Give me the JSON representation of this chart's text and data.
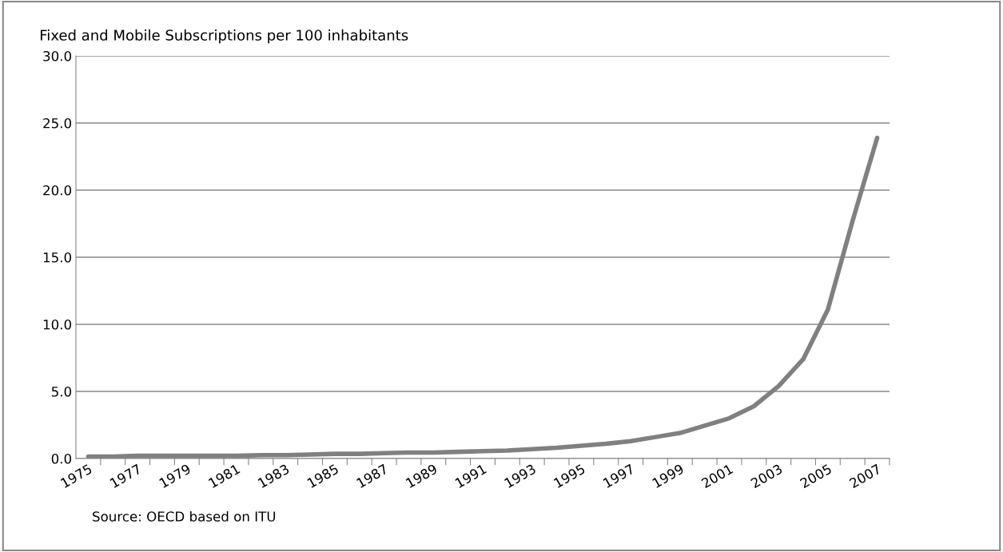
{
  "chart_data": {
    "type": "line",
    "title": "Fixed and Mobile Subscriptions per 100 inhabitants",
    "categories": [
      "1975",
      null,
      "1977",
      null,
      "1979",
      null,
      "1981",
      null,
      "1983",
      null,
      "1985",
      null,
      "1987",
      null,
      "1989",
      null,
      "1991",
      null,
      "1993",
      null,
      "1995",
      null,
      "1997",
      null,
      "1999",
      null,
      "2001",
      null,
      "2003",
      null,
      "2005",
      null,
      "2007"
    ],
    "series": [
      {
        "color": "#808080",
        "values": [
          0.15,
          0.15,
          0.2,
          0.2,
          0.2,
          0.2,
          0.2,
          0.25,
          0.25,
          0.3,
          0.35,
          0.35,
          0.4,
          0.45,
          0.45,
          0.5,
          0.55,
          0.6,
          0.7,
          0.8,
          0.95,
          1.1,
          1.3,
          1.6,
          1.9,
          2.45,
          3.0,
          3.9,
          5.4,
          7.4,
          11.1,
          17.7,
          23.9
        ]
      }
    ],
    "ylim": [
      0,
      30
    ],
    "yticks": [
      {
        "value": 0,
        "label": "0.0"
      },
      {
        "value": 5,
        "label": "5.0"
      },
      {
        "value": 10,
        "label": "10.0"
      },
      {
        "value": 15,
        "label": "15.0"
      },
      {
        "value": 20,
        "label": "20.0"
      },
      {
        "value": 25,
        "label": "25.0"
      },
      {
        "value": 30,
        "label": "30.0"
      }
    ],
    "grid": "y",
    "legend": false,
    "marker": "none",
    "line_style": "solid",
    "annotations": [
      "Source: OECD based on ITU"
    ]
  }
}
